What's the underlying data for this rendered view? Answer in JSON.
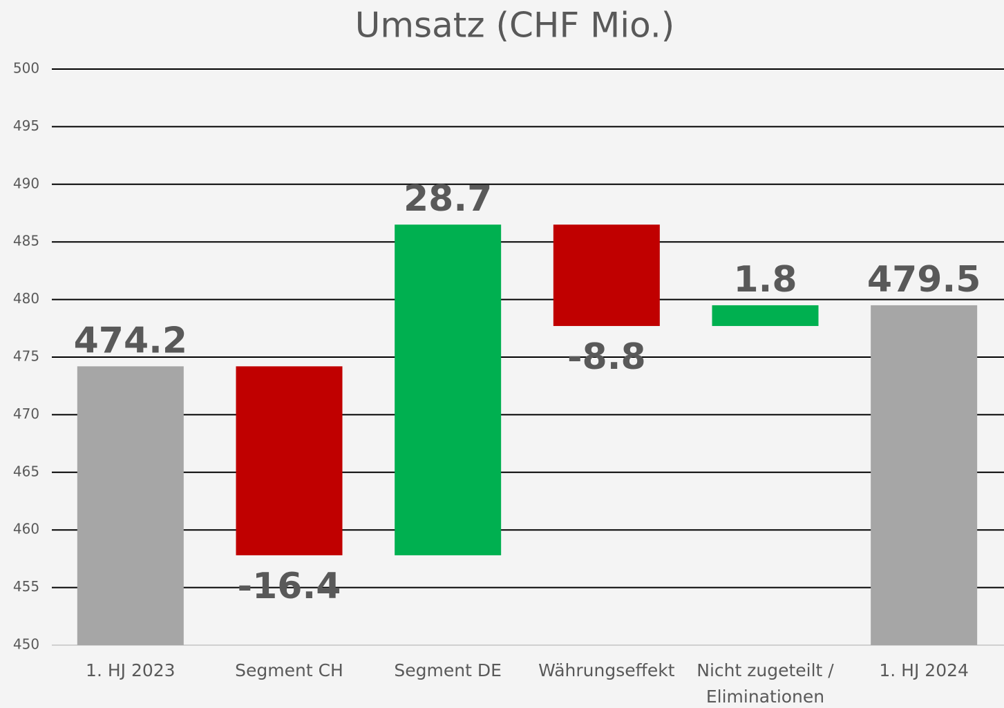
{
  "chart_data": {
    "type": "waterfall",
    "title": "Umsatz (CHF Mio.)",
    "categories": [
      "1. HJ 2023",
      "Segment CH",
      "Segment DE",
      "Währungseffekt",
      "Nicht zugeteilt / Eliminationen",
      "1. HJ 2024"
    ],
    "values": [
      474.2,
      -16.4,
      28.7,
      -8.8,
      1.8,
      479.5
    ],
    "measure": [
      "absolute",
      "relative",
      "relative",
      "relative",
      "relative",
      "absolute"
    ],
    "colors": {
      "total": "#a6a6a6",
      "increase": "#00b050",
      "decrease": "#c00000"
    },
    "ylim": [
      450,
      500
    ],
    "yticks": [
      450,
      455,
      460,
      465,
      470,
      475,
      480,
      485,
      490,
      495,
      500
    ],
    "grid": true
  }
}
